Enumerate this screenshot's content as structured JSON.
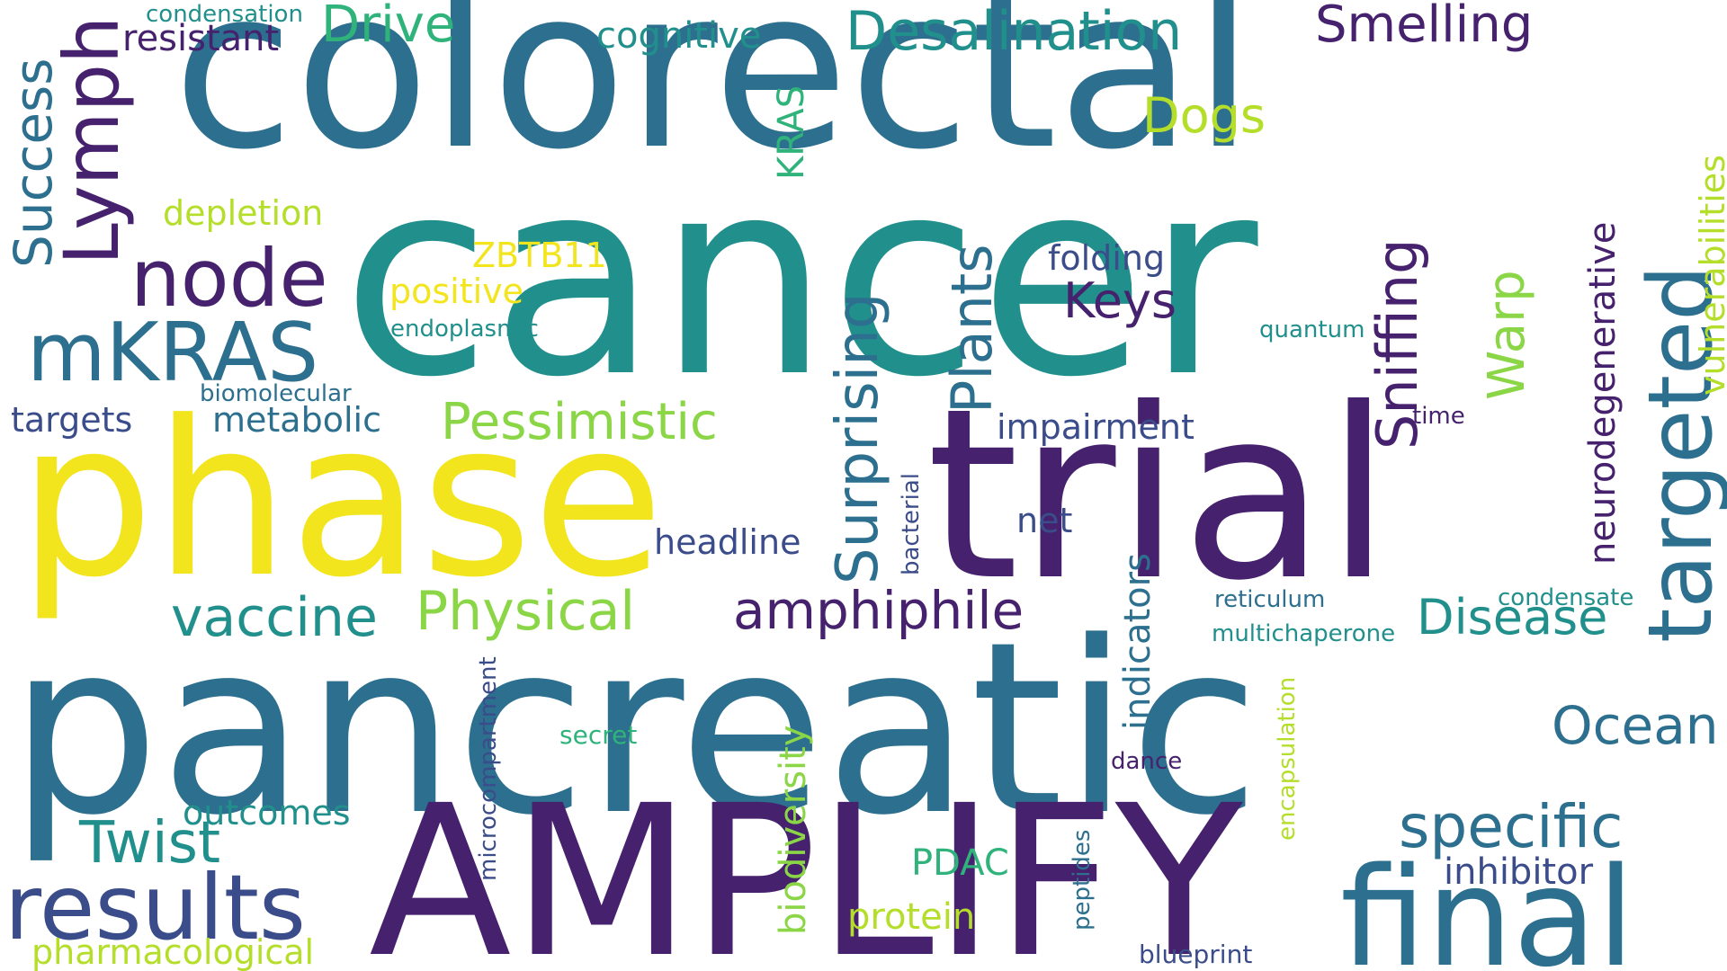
{
  "colors": {
    "purple": "#46216d",
    "indigo": "#3b4c8a",
    "blue": "#2d6f8e",
    "teal": "#21908c",
    "green": "#2fb37b",
    "lightgreen": "#8bd646",
    "yellowgreen": "#b5de2b",
    "yellow": "#f2e51d"
  },
  "words": [
    {
      "text": "colorectal",
      "color": "blue"
    },
    {
      "text": "cancer",
      "color": "teal"
    },
    {
      "text": "phase",
      "color": "yellow"
    },
    {
      "text": "trial",
      "color": "purple"
    },
    {
      "text": "pancreatic",
      "color": "blue"
    },
    {
      "text": "AMPLIFY",
      "color": "purple"
    },
    {
      "text": "final",
      "color": "blue"
    },
    {
      "text": "results",
      "color": "indigo"
    },
    {
      "text": "targeted",
      "color": "blue"
    },
    {
      "text": "node",
      "color": "purple"
    },
    {
      "text": "mKRAS",
      "color": "blue"
    },
    {
      "text": "Lymph",
      "color": "purple"
    },
    {
      "text": "Desalination",
      "color": "teal"
    },
    {
      "text": "Smelling",
      "color": "purple"
    },
    {
      "text": "Drive",
      "color": "green"
    },
    {
      "text": "Dogs",
      "color": "yellowgreen"
    },
    {
      "text": "Success",
      "color": "blue"
    },
    {
      "text": "Keys",
      "color": "purple"
    },
    {
      "text": "Plants",
      "color": "blue"
    },
    {
      "text": "Sniffing",
      "color": "purple"
    },
    {
      "text": "Warp",
      "color": "lightgreen"
    },
    {
      "text": "Pessimistic",
      "color": "lightgreen"
    },
    {
      "text": "Surprising",
      "color": "blue"
    },
    {
      "text": "Physical",
      "color": "lightgreen"
    },
    {
      "text": "vaccine",
      "color": "teal"
    },
    {
      "text": "amphiphile",
      "color": "purple"
    },
    {
      "text": "Disease",
      "color": "teal"
    },
    {
      "text": "specific",
      "color": "blue"
    },
    {
      "text": "Ocean",
      "color": "blue"
    },
    {
      "text": "Twist",
      "color": "teal"
    },
    {
      "text": "neurodegenerative",
      "color": "purple"
    },
    {
      "text": "vulnerabilities",
      "color": "yellowgreen"
    },
    {
      "text": "condensation",
      "color": "teal"
    },
    {
      "text": "resistant",
      "color": "purple"
    },
    {
      "text": "cognitive",
      "color": "teal"
    },
    {
      "text": "depletion",
      "color": "yellowgreen"
    },
    {
      "text": "KRAS",
      "color": "green"
    },
    {
      "text": "ZBTB11",
      "color": "yellow"
    },
    {
      "text": "positive",
      "color": "yellow"
    },
    {
      "text": "folding",
      "color": "indigo"
    },
    {
      "text": "endoplasmic",
      "color": "teal"
    },
    {
      "text": "quantum",
      "color": "teal"
    },
    {
      "text": "biomolecular",
      "color": "blue"
    },
    {
      "text": "targets",
      "color": "indigo"
    },
    {
      "text": "metabolic",
      "color": "blue"
    },
    {
      "text": "impairment",
      "color": "indigo"
    },
    {
      "text": "time",
      "color": "purple"
    },
    {
      "text": "bacterial",
      "color": "indigo"
    },
    {
      "text": "net",
      "color": "indigo"
    },
    {
      "text": "headline",
      "color": "indigo"
    },
    {
      "text": "indicators",
      "color": "blue"
    },
    {
      "text": "reticulum",
      "color": "blue"
    },
    {
      "text": "condensate",
      "color": "teal"
    },
    {
      "text": "multichaperone",
      "color": "teal"
    },
    {
      "text": "microcompartment",
      "color": "indigo"
    },
    {
      "text": "biodiversity",
      "color": "lightgreen"
    },
    {
      "text": "encapsulation",
      "color": "yellowgreen"
    },
    {
      "text": "secret",
      "color": "green"
    },
    {
      "text": "dance",
      "color": "purple"
    },
    {
      "text": "outcomes",
      "color": "teal"
    },
    {
      "text": "PDAC",
      "color": "green"
    },
    {
      "text": "peptides",
      "color": "blue"
    },
    {
      "text": "inhibitor",
      "color": "indigo"
    },
    {
      "text": "protein",
      "color": "yellowgreen"
    },
    {
      "text": "pharmacological",
      "color": "yellowgreen"
    },
    {
      "text": "blueprint",
      "color": "indigo"
    }
  ]
}
